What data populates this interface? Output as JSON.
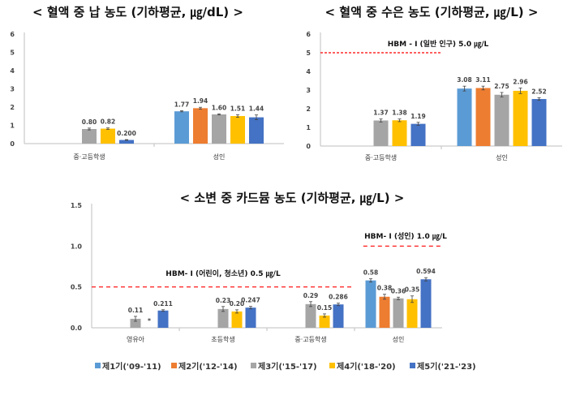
{
  "colors": {
    "p1": "#5B9BD5",
    "p2": "#ED7D31",
    "p3": "#A5A5A5",
    "p4": "#FFC000",
    "p5": "#4472C4",
    "threshold": "#FF0000",
    "axis": "#BFBFBF"
  },
  "legend": [
    "제1기('09-'11)",
    "제2기('12-'14)",
    "제3기('15-'17)",
    "제4기('18-'20)",
    "제5기('21-'23)"
  ],
  "chart_data": [
    {
      "type": "bar",
      "title": "< 혈액 중 납 농도 (기하평균, ㎍/dL) >",
      "ylim": [
        0,
        6
      ],
      "yticks": [
        "0",
        "1",
        "2",
        "3",
        "4",
        "5",
        "6"
      ],
      "categories": [
        "중·고등학생",
        "성인"
      ],
      "series": [
        {
          "name": "제1기('09-'11)",
          "values": [
            null,
            1.77
          ],
          "labels": [
            "",
            "1.77"
          ],
          "err": [
            null,
            0.03
          ]
        },
        {
          "name": "제2기('12-'14)",
          "values": [
            null,
            1.94
          ],
          "labels": [
            "",
            "1.94"
          ],
          "err": [
            null,
            0.05
          ]
        },
        {
          "name": "제3기('15-'17)",
          "values": [
            0.8,
            1.6
          ],
          "labels": [
            "0.80",
            "1.60"
          ],
          "err": [
            0.05,
            0.03
          ]
        },
        {
          "name": "제4기('18-'20)",
          "values": [
            0.82,
            1.51
          ],
          "labels": [
            "0.82",
            "1.51"
          ],
          "err": [
            0.04,
            0.07
          ]
        },
        {
          "name": "제5기('21-'23)",
          "values": [
            0.2,
            1.44
          ],
          "labels": [
            "0.200",
            "1.44"
          ],
          "err": [
            0.02,
            0.13
          ]
        }
      ],
      "thresholds": []
    },
    {
      "type": "bar",
      "title": "< 혈액 중 수은 농도 (기하평균, ㎍/L) >",
      "ylim": [
        0,
        6
      ],
      "yticks": [
        "0",
        "1",
        "2",
        "3",
        "4",
        "5",
        "6"
      ],
      "categories": [
        "중·고등학생",
        "성인"
      ],
      "series": [
        {
          "name": "제1기('09-'11)",
          "values": [
            null,
            3.08
          ],
          "labels": [
            "",
            "3.08"
          ],
          "err": [
            null,
            0.13
          ]
        },
        {
          "name": "제2기('12-'14)",
          "values": [
            null,
            3.11
          ],
          "labels": [
            "",
            "3.11"
          ],
          "err": [
            null,
            0.1
          ]
        },
        {
          "name": "제3기('15-'17)",
          "values": [
            1.37,
            2.75
          ],
          "labels": [
            "1.37",
            "2.75"
          ],
          "err": [
            0.08,
            0.12
          ]
        },
        {
          "name": "제4기('18-'20)",
          "values": [
            1.38,
            2.96
          ],
          "labels": [
            "1.38",
            "2.96"
          ],
          "err": [
            0.07,
            0.15
          ]
        },
        {
          "name": "제5기('21-'23)",
          "values": [
            1.19,
            2.52
          ],
          "labels": [
            "1.19",
            "2.52"
          ],
          "err": [
            0.08,
            0.07
          ]
        }
      ],
      "thresholds": [
        {
          "value": 5.0,
          "label": "HBM - Ⅰ (일반 인구) 5.0 ㎍/L",
          "range": [
            0,
            1
          ]
        }
      ]
    },
    {
      "type": "bar",
      "title": "< 소변 중 카드뮴 농도 (기하평균, ㎍/L) >",
      "ylim": [
        0,
        1.5
      ],
      "yticks": [
        "0.0",
        "0.5",
        "1.0",
        "1.5"
      ],
      "categories": [
        "영유아",
        "초등학생",
        "중·고등학생",
        "성인"
      ],
      "series": [
        {
          "name": "제1기('09-'11)",
          "values": [
            null,
            null,
            null,
            0.58
          ],
          "labels": [
            "",
            "",
            "",
            "0.58"
          ],
          "err": [
            null,
            null,
            null,
            0.02
          ]
        },
        {
          "name": "제2기('12-'14)",
          "values": [
            null,
            null,
            null,
            0.38
          ],
          "labels": [
            "",
            "",
            "",
            "0.38"
          ],
          "err": [
            null,
            null,
            null,
            0.03
          ]
        },
        {
          "name": "제3기('15-'17)",
          "values": [
            0.11,
            0.23,
            0.29,
            0.36
          ],
          "labels": [
            "0.11",
            "0.23",
            "0.29",
            "0.36"
          ],
          "err": [
            0.03,
            0.03,
            0.03,
            0.015
          ]
        },
        {
          "name": "제4기('18-'20)",
          "values": [
            null,
            0.2,
            0.15,
            0.35
          ],
          "labels": [
            "*",
            "0.20",
            "0.15",
            "0.35"
          ],
          "err": [
            null,
            0.02,
            0.02,
            0.04
          ]
        },
        {
          "name": "제5기('21-'23)",
          "values": [
            0.211,
            0.247,
            0.286,
            0.594
          ],
          "labels": [
            "0.211",
            "0.247",
            "0.286",
            "0.594"
          ],
          "err": [
            0.01,
            0.015,
            0.015,
            0.02
          ]
        }
      ],
      "thresholds": [
        {
          "value": 0.5,
          "label": "HBM- Ⅰ (어린이, 청소년) 0.5 ㎍/L",
          "range": [
            0,
            3
          ]
        },
        {
          "value": 1.0,
          "label": "HBM- Ⅰ (성인) 1.0 ㎍/L",
          "range": [
            3,
            4
          ]
        }
      ]
    }
  ]
}
